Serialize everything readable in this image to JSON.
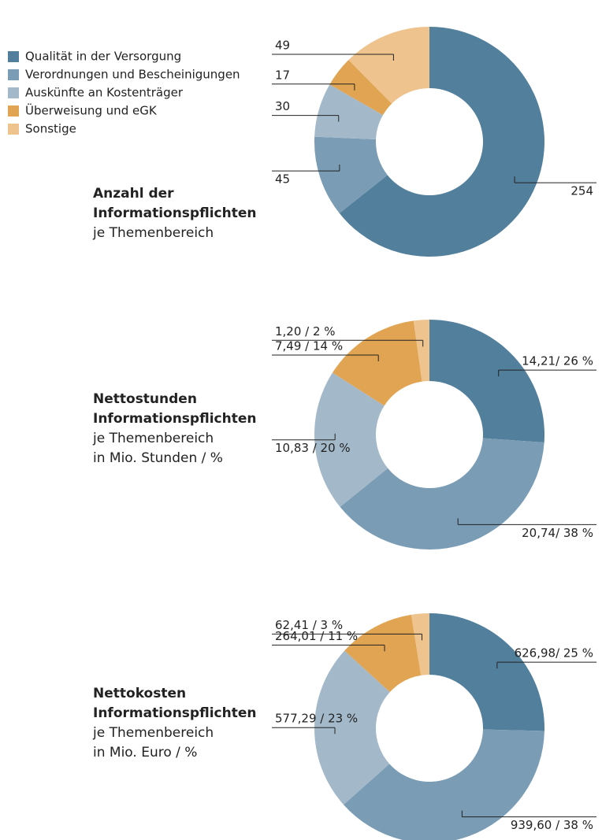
{
  "chart_data": [
    {
      "type": "pie",
      "donut": true,
      "title_lines": [
        "Anzahl der",
        "Informationspflichten"
      ],
      "subtitle_lines": [
        "je Themenbereich"
      ],
      "categories": [
        "Qualität in der Versorgung",
        "Verordnungen und Bescheinigungen",
        "Auskünfte an Kostenträger",
        "Überweisung und eGK",
        "Sonstige"
      ],
      "colors": [
        "#527f9b",
        "#7a9cb5",
        "#a3b9ca",
        "#e0a452",
        "#efc38e"
      ],
      "legend": "top-left",
      "values": [
        254,
        45,
        30,
        17,
        49
      ]
    },
    {
      "type": "pie",
      "donut": true,
      "title_lines": [
        "Nettostunden",
        "Informationspflichten"
      ],
      "subtitle_lines": [
        "je Themenbereich",
        "in Mio. Stunden / %"
      ],
      "values": [
        14.21,
        20.74,
        10.83,
        7.49,
        1.2
      ],
      "value_labels": [
        "14,21/ 26 %",
        "20,74/ 38 %",
        "10,83 / 20 %",
        "7,49 / 14 %",
        "1,20 / 2 %"
      ]
    },
    {
      "type": "pie",
      "donut": true,
      "title_lines": [
        "Nettokosten",
        "Informationspflichten"
      ],
      "subtitle_lines": [
        "je Themenbereich",
        "in Mio. Euro / %"
      ],
      "values": [
        626.98,
        939.6,
        577.29,
        264.01,
        62.41
      ],
      "value_labels": [
        "626,98/ 25 %",
        "939,60 / 38 %",
        "577,29 / 23 %",
        "264,01 / 11 %",
        "62,41 / 3 %"
      ]
    }
  ]
}
